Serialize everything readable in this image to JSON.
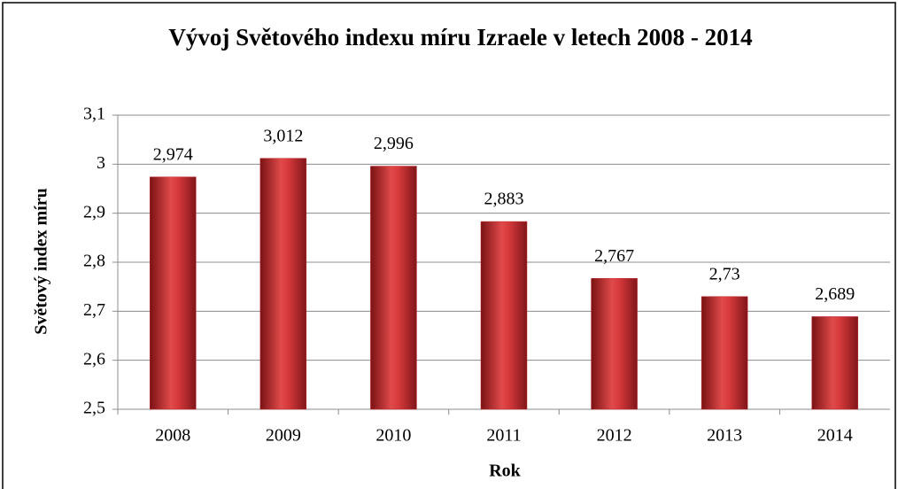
{
  "chart_data": {
    "type": "bar",
    "title": "Vývoj Světového indexu míru  Izraele v letech 2008 - 2014",
    "x_label": "Rok",
    "y_label": "Světový index míru",
    "categories": [
      "2008",
      "2009",
      "2010",
      "2011",
      "2012",
      "2013",
      "2014"
    ],
    "values": [
      2.974,
      3.012,
      2.996,
      2.883,
      2.767,
      2.73,
      2.689
    ],
    "value_labels": [
      "2,974",
      "3,012",
      "2,996",
      "2,883",
      "2,767",
      "2,73",
      "2,689"
    ],
    "color": "#c0282c",
    "ylim": [
      2.5,
      3.1
    ],
    "yticks": [
      {
        "value": 2.5,
        "label": "2,5"
      },
      {
        "value": 2.6,
        "label": "2,6"
      },
      {
        "value": 2.7,
        "label": "2,7"
      },
      {
        "value": 2.8,
        "label": "2,8"
      },
      {
        "value": 2.9,
        "label": "2,9"
      },
      3,
      {
        "value": 3.1,
        "label": "3,1"
      }
    ],
    "grid": true
  }
}
